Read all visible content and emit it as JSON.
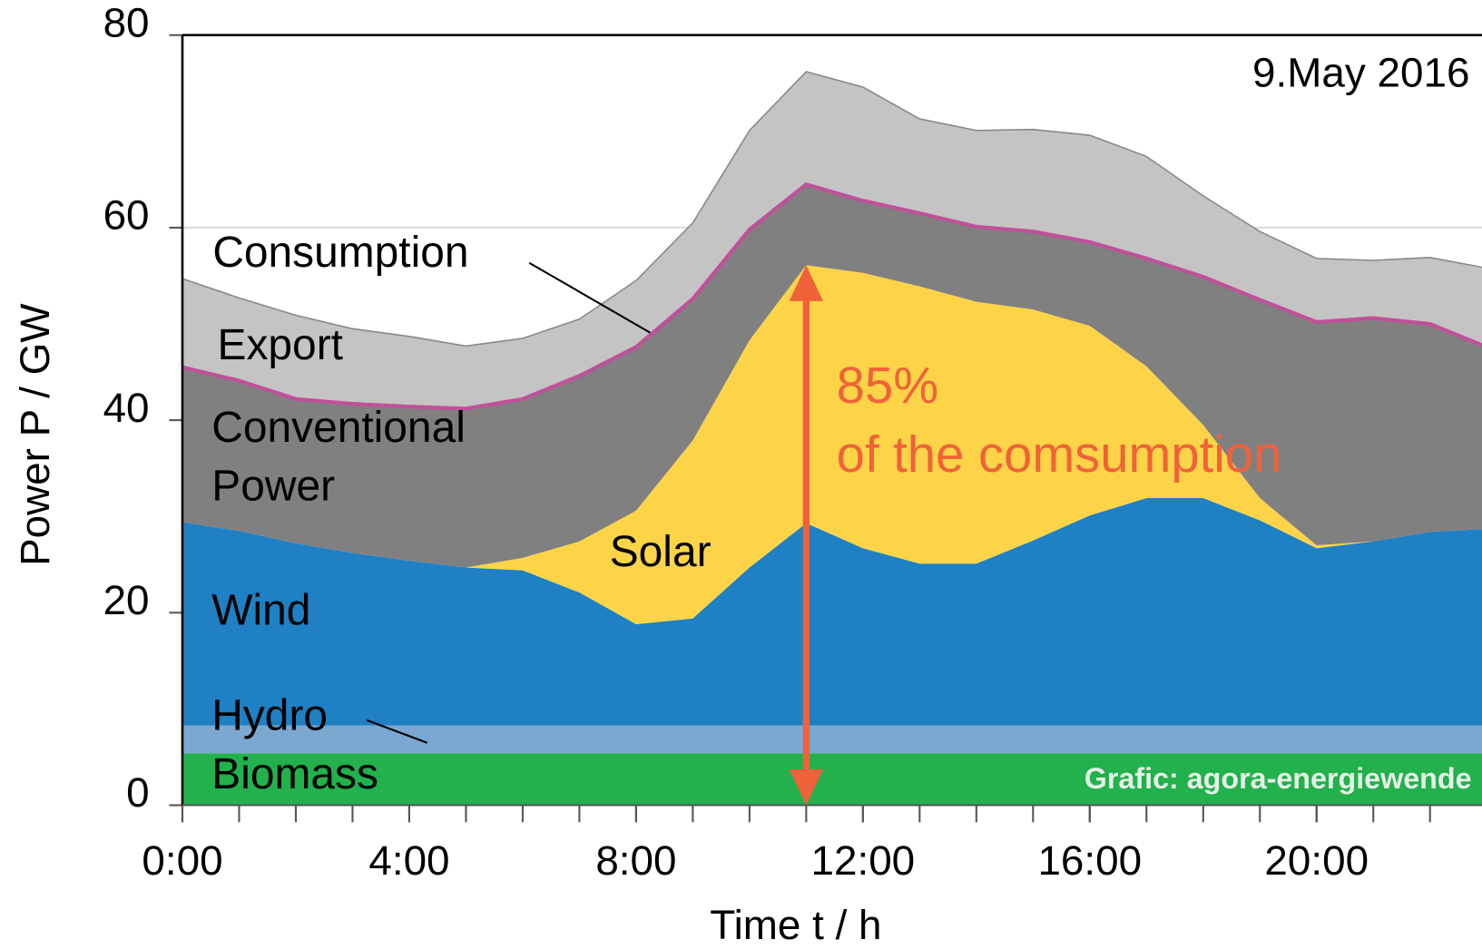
{
  "chart_data": {
    "type": "stacked_area",
    "x": [
      0,
      1,
      2,
      3,
      4,
      5,
      6,
      7,
      8,
      9,
      10,
      11,
      12,
      13,
      14,
      15,
      16,
      17,
      18,
      19,
      20,
      21,
      22,
      23
    ],
    "xlim": [
      0,
      23
    ],
    "xticks": [
      {
        "value": 0,
        "label": "0:00"
      },
      {
        "value": 4,
        "label": "4:00"
      },
      {
        "value": 8,
        "label": "8:00"
      },
      {
        "value": 12,
        "label": "12:00"
      },
      {
        "value": 16,
        "label": "16:00"
      },
      {
        "value": 20,
        "label": "20:00"
      }
    ],
    "xminorticks": [
      0,
      1,
      2,
      3,
      4,
      5,
      6,
      7,
      8,
      9,
      10,
      11,
      12,
      13,
      14,
      15,
      16,
      17,
      18,
      19,
      20,
      21,
      22,
      23
    ],
    "ylim": [
      0,
      80
    ],
    "yticks": [
      0,
      20,
      40,
      60,
      80
    ],
    "grid": true,
    "xlabel": "Time t / h",
    "ylabel": "Power P / GW",
    "series": [
      {
        "name": "Biomass",
        "color": "#22b14c",
        "values": [
          5.4,
          5.4,
          5.4,
          5.4,
          5.4,
          5.4,
          5.4,
          5.4,
          5.4,
          5.4,
          5.4,
          5.4,
          5.4,
          5.4,
          5.4,
          5.4,
          5.4,
          5.4,
          5.4,
          5.4,
          5.4,
          5.4,
          5.4,
          5.4
        ]
      },
      {
        "name": "Hydro",
        "color": "#7ba8d0",
        "values": [
          2.9,
          2.9,
          2.9,
          2.9,
          2.9,
          2.9,
          2.9,
          2.9,
          2.9,
          2.9,
          2.9,
          2.9,
          2.9,
          2.9,
          2.9,
          2.9,
          2.9,
          2.9,
          2.9,
          2.9,
          2.9,
          2.9,
          2.9,
          2.9
        ]
      },
      {
        "name": "Wind",
        "color": "#1f80c4",
        "values": [
          21.1,
          20.2,
          18.9,
          17.9,
          17.1,
          16.4,
          16.1,
          13.8,
          10.5,
          11.1,
          16.4,
          21.0,
          18.4,
          16.8,
          16.8,
          19.2,
          21.8,
          23.6,
          23.6,
          21.3,
          18.4,
          19.1,
          20.1,
          20.4
        ]
      },
      {
        "name": "Solar",
        "color": "#fdd447",
        "values": [
          0,
          0,
          0,
          0,
          0,
          0,
          1.3,
          5.3,
          11.8,
          18.5,
          23.6,
          26.8,
          28.6,
          28.8,
          27.2,
          24.0,
          19.7,
          13.7,
          7.6,
          2.3,
          0.3,
          0,
          0,
          0
        ]
      },
      {
        "name": "Conventional Power",
        "color": "#808080",
        "values": [
          16.1,
          15.6,
          15.0,
          15.5,
          16.0,
          16.5,
          16.5,
          17.2,
          17.0,
          14.7,
          11.5,
          8.4,
          7.5,
          7.6,
          7.8,
          8.1,
          8.7,
          11.2,
          15.4,
          20.6,
          23.2,
          23.2,
          21.6,
          18.9
        ]
      },
      {
        "name": "Export",
        "color": "#c4c4c4",
        "values": [
          9.2,
          8.6,
          8.7,
          7.8,
          7.3,
          6.5,
          6.3,
          5.9,
          6.9,
          7.9,
          10.3,
          11.7,
          11.8,
          9.8,
          10.0,
          10.6,
          11.1,
          10.6,
          8.4,
          7.1,
          6.6,
          6.0,
          6.9,
          8.2
        ]
      }
    ],
    "consumption_label": "Consumption",
    "consumption_color": "#c0509b",
    "date": "9.May 2016",
    "share": "85%",
    "share_note": "of the comsumption",
    "share_color": "#f0623a",
    "source": "Grafic: agora-energiewende"
  }
}
